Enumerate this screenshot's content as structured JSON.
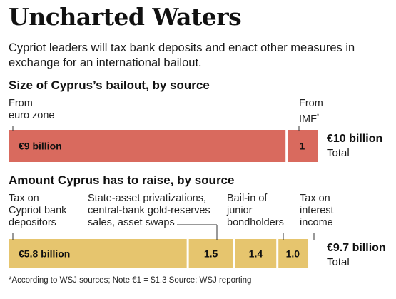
{
  "title": "Uncharted Waters",
  "subtitle": "Cypriot leaders will tax bank deposits and enact other measures in exchange for an international bailout.",
  "footnote": "*According to WSJ sources; Note €1 = $1.3 Source: WSJ reporting",
  "colors": {
    "bailout": "#d96a5e",
    "raise": "#e6c56e",
    "divider": "#ffffff",
    "leader": "#333333"
  },
  "chart_data": [
    {
      "type": "bar",
      "orientation": "horizontal-stacked",
      "title": "Size of Cyprus’s bailout, by source",
      "unit": "€ billion",
      "total": 10,
      "total_label": "€10 billion",
      "total_caption": "Total",
      "series": [
        {
          "name": "From\neuro zone",
          "value": 9,
          "value_label": "€9 billion"
        },
        {
          "name": "From\nIMF",
          "footnote_mark": "*",
          "value": 1,
          "value_label": "1"
        }
      ]
    },
    {
      "type": "bar",
      "orientation": "horizontal-stacked",
      "title": "Amount Cyprus has to raise, by source",
      "unit": "€ billion",
      "total": 9.7,
      "total_label": "€9.7 billion",
      "total_caption": "Total",
      "series": [
        {
          "name": "Tax on\nCypriot bank\ndepositors",
          "value": 5.8,
          "value_label": "€5.8 billion"
        },
        {
          "name": "State-asset privatizations,\ncentral-bank gold-reserves\nsales, asset swaps",
          "value": 1.5,
          "value_label": "1.5"
        },
        {
          "name": "Bail-in of\njunior\nbondholders",
          "value": 1.4,
          "value_label": "1.4"
        },
        {
          "name": "Tax on\ninterest\nincome",
          "value": 1.0,
          "value_label": "1.0"
        }
      ]
    }
  ]
}
